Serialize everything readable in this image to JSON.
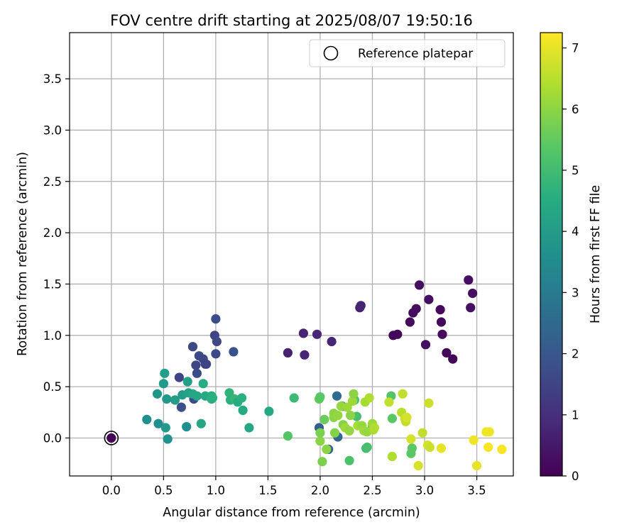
{
  "chart_data": {
    "type": "scatter",
    "title": "FOV centre drift starting at 2025/08/07 19:50:16",
    "xlabel": "Angular distance from reference (arcmin)",
    "ylabel": "Rotation from reference (arcmin)",
    "xlim": [
      -0.4,
      3.85
    ],
    "ylim": [
      -0.37,
      3.95
    ],
    "xticks": [
      0.0,
      0.5,
      1.0,
      1.5,
      2.0,
      2.5,
      3.0,
      3.5
    ],
    "xtick_labels": [
      "0.0",
      "0.5",
      "1.0",
      "1.5",
      "2.0",
      "2.5",
      "3.0",
      "3.5"
    ],
    "yticks": [
      0.0,
      0.5,
      1.0,
      1.5,
      2.0,
      2.5,
      3.0,
      3.5
    ],
    "ytick_labels": [
      "0.0",
      "0.5",
      "1.0",
      "1.5",
      "2.0",
      "2.5",
      "3.0",
      "3.5"
    ],
    "grid": true,
    "legend": {
      "placement": "top-right",
      "entries": [
        "Reference platepar"
      ]
    },
    "reference_point": {
      "x": 0.0,
      "y": 0.0
    },
    "colorbar": {
      "label": "Hours from first FF file",
      "range": [
        0,
        7.25
      ],
      "ticks": [
        0,
        1,
        2,
        3,
        4,
        5,
        6,
        7
      ],
      "tick_labels": [
        "0",
        "1",
        "2",
        "3",
        "4",
        "5",
        "6",
        "7"
      ],
      "colormap": "viridis"
    },
    "points": [
      [
        0.0,
        0.0,
        0.0
      ],
      [
        2.7,
        1.0,
        0.15
      ],
      [
        2.74,
        1.01,
        0.15
      ],
      [
        2.86,
        1.13,
        0.2
      ],
      [
        2.89,
        1.22,
        0.2
      ],
      [
        2.92,
        1.26,
        0.25
      ],
      [
        2.95,
        1.49,
        0.3
      ],
      [
        3.01,
        0.91,
        0.3
      ],
      [
        3.04,
        1.35,
        0.3
      ],
      [
        3.15,
        1.25,
        0.2
      ],
      [
        3.16,
        1.13,
        0.15
      ],
      [
        3.17,
        1.01,
        0.2
      ],
      [
        3.21,
        0.83,
        0.1
      ],
      [
        3.27,
        0.77,
        0.1
      ],
      [
        3.42,
        1.54,
        0.3
      ],
      [
        3.44,
        1.27,
        0.35
      ],
      [
        3.46,
        1.41,
        0.3
      ],
      [
        1.69,
        0.83,
        0.7
      ],
      [
        1.84,
        1.02,
        0.75
      ],
      [
        1.85,
        0.81,
        0.8
      ],
      [
        1.97,
        1.01,
        0.8
      ],
      [
        2.11,
        0.94,
        0.75
      ],
      [
        2.38,
        1.27,
        0.7
      ],
      [
        2.39,
        1.29,
        0.75
      ],
      [
        0.65,
        0.59,
        1.5
      ],
      [
        0.67,
        0.3,
        1.8
      ],
      [
        0.78,
        0.89,
        1.6
      ],
      [
        0.79,
        0.38,
        1.7
      ],
      [
        0.81,
        0.71,
        1.55
      ],
      [
        0.82,
        0.63,
        1.7
      ],
      [
        0.84,
        0.8,
        1.65
      ],
      [
        0.88,
        0.77,
        1.6
      ],
      [
        0.9,
        0.72,
        1.4
      ],
      [
        0.91,
        0.72,
        1.5
      ],
      [
        0.99,
        1.0,
        1.5
      ],
      [
        1.0,
        1.16,
        1.7
      ],
      [
        1.0,
        0.82,
        1.65
      ],
      [
        1.01,
        0.94,
        1.6
      ],
      [
        1.17,
        0.84,
        1.85
      ],
      [
        1.99,
        0.1,
        2.2
      ],
      [
        2.08,
        -0.11,
        2.3
      ],
      [
        2.16,
        0.41,
        2.6
      ],
      [
        2.17,
        0.01,
        2.5
      ],
      [
        2.21,
        0.31,
        2.7
      ],
      [
        0.34,
        0.18,
        3.6
      ],
      [
        0.44,
        0.43,
        3.8
      ],
      [
        0.45,
        0.14,
        3.6
      ],
      [
        0.5,
        0.53,
        3.9
      ],
      [
        0.51,
        0.63,
        4.1
      ],
      [
        0.52,
        0.1,
        3.9
      ],
      [
        0.53,
        0.38,
        3.9
      ],
      [
        0.54,
        -0.01,
        3.7
      ],
      [
        0.61,
        0.37,
        4.0
      ],
      [
        0.68,
        0.42,
        4.0
      ],
      [
        0.72,
        0.11,
        3.6
      ],
      [
        0.73,
        0.55,
        4.1
      ],
      [
        0.74,
        0.44,
        4.2
      ],
      [
        0.78,
        0.43,
        4.3
      ],
      [
        0.82,
        0.41,
        4.3
      ],
      [
        0.86,
        0.14,
        4.3
      ],
      [
        0.88,
        0.53,
        4.5
      ],
      [
        0.9,
        0.41,
        4.4
      ],
      [
        0.96,
        0.41,
        4.5
      ],
      [
        0.96,
        0.38,
        4.6
      ],
      [
        0.97,
        0.39,
        4.6
      ],
      [
        1.13,
        0.44,
        4.7
      ],
      [
        1.14,
        0.37,
        4.6
      ],
      [
        1.18,
        0.38,
        4.8
      ],
      [
        1.21,
        0.35,
        4.5
      ],
      [
        1.25,
        0.39,
        4.6
      ],
      [
        1.26,
        0.27,
        4.4
      ],
      [
        1.32,
        0.1,
        4.3
      ],
      [
        1.51,
        0.26,
        4.4
      ],
      [
        1.69,
        0.02,
        5.3
      ],
      [
        1.75,
        0.39,
        4.9
      ],
      [
        1.99,
        0.38,
        5.5
      ],
      [
        2.0,
        0.4,
        5.4
      ],
      [
        2.33,
        0.37,
        5.2
      ],
      [
        2.35,
        0.21,
        5.1
      ],
      [
        2.44,
        -0.1,
        5.0
      ],
      [
        2.45,
        -0.09,
        5.1
      ],
      [
        2.5,
        0.12,
        5.3
      ],
      [
        2.68,
        0.41,
        5.3
      ],
      [
        2.69,
        0.19,
        5.4
      ],
      [
        2.87,
        -0.15,
        5.4
      ],
      [
        2.88,
        -0.1,
        5.4
      ],
      [
        2.28,
        -0.22,
        5.2
      ],
      [
        2.0,
        -0.03,
        6.0
      ],
      [
        2.0,
        0.05,
        5.8
      ],
      [
        2.02,
        -0.23,
        5.8
      ],
      [
        2.04,
        0.18,
        5.6
      ],
      [
        2.06,
        -0.11,
        6.0
      ],
      [
        2.13,
        0.2,
        6.0
      ],
      [
        2.13,
        0.24,
        6.0
      ],
      [
        2.14,
        0.05,
        5.9
      ],
      [
        2.17,
        0.22,
        6.1
      ],
      [
        2.2,
        0.31,
        6.1
      ],
      [
        2.22,
        0.13,
        5.9
      ],
      [
        2.24,
        0.1,
        6.2
      ],
      [
        2.26,
        0.3,
        6.2
      ],
      [
        2.28,
        0.07,
        6.1
      ],
      [
        2.29,
        0.22,
        6.0
      ],
      [
        2.31,
        0.36,
        6.2
      ],
      [
        2.32,
        0.43,
        6.0
      ],
      [
        2.36,
        0.12,
        6.3
      ],
      [
        2.4,
        0.12,
        6.1
      ],
      [
        2.42,
        0.07,
        6.2
      ],
      [
        2.43,
        0.35,
        6.3
      ],
      [
        2.45,
        0.06,
        6.1
      ],
      [
        2.47,
        0.39,
        6.4
      ],
      [
        2.5,
        0.14,
        6.2
      ],
      [
        2.51,
        0.08,
        6.3
      ],
      [
        2.52,
        0.1,
        6.4
      ],
      [
        2.66,
        0.35,
        6.6
      ],
      [
        2.69,
        -0.18,
        6.4
      ],
      [
        2.78,
        0.25,
        6.5
      ],
      [
        2.79,
        0.43,
        6.6
      ],
      [
        2.81,
        0.19,
        6.7
      ],
      [
        2.82,
        0.16,
        6.6
      ],
      [
        2.83,
        0.2,
        6.8
      ],
      [
        2.87,
        -0.01,
        6.8
      ],
      [
        2.94,
        -0.27,
        6.8
      ],
      [
        2.98,
        0.05,
        6.6
      ],
      [
        3.03,
        -0.07,
        6.8
      ],
      [
        3.04,
        0.34,
        6.7
      ],
      [
        3.05,
        -0.09,
        6.7
      ],
      [
        3.16,
        -0.1,
        7.0
      ],
      [
        3.47,
        -0.02,
        7.1
      ],
      [
        3.5,
        -0.27,
        7.0
      ],
      [
        3.59,
        0.06,
        7.1
      ],
      [
        3.61,
        -0.09,
        7.2
      ],
      [
        3.62,
        0.06,
        7.1
      ],
      [
        3.74,
        -0.11,
        7.2
      ]
    ]
  }
}
